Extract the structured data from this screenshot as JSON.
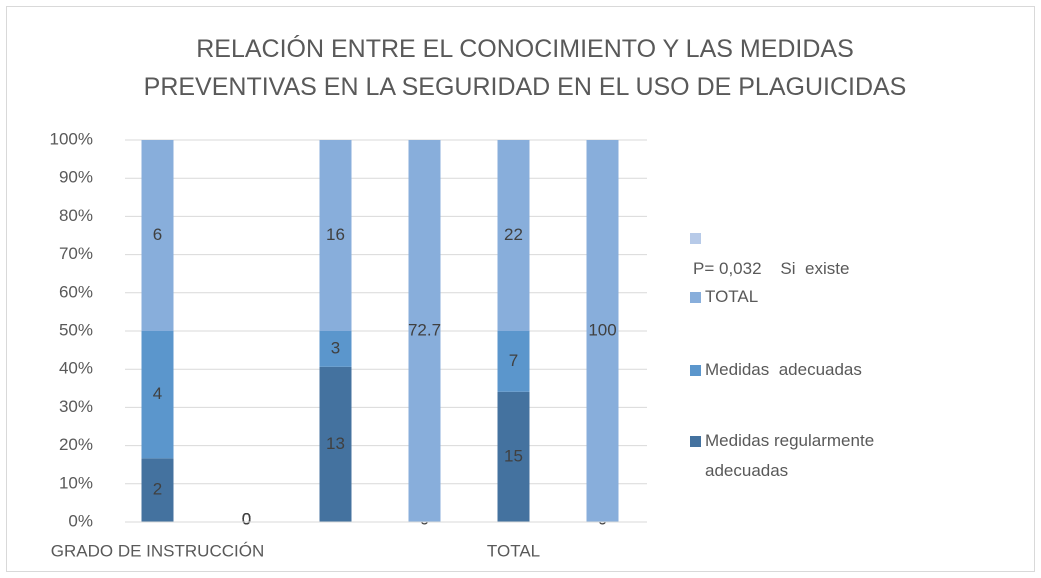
{
  "chart_data": {
    "type": "stacked_bar_100",
    "title": "RELACIÓN ENTRE EL CONOCIMIENTO Y LAS MEDIDAS PREVENTIVAS EN LA SEGURIDAD EN EL USO DE PLAGUICIDAS",
    "categories": [
      "GRADO DE INSTRUCCIÓN",
      null,
      null,
      null,
      "TOTAL",
      null
    ],
    "series": [
      {
        "name": "Medidas regularmente adecuadas",
        "color": "#44729f",
        "values": [
          2,
          0,
          13,
          0,
          15,
          0
        ]
      },
      {
        "name": "Medidas  adecuadas",
        "color": "#5b96cc",
        "values": [
          4,
          0,
          3,
          null,
          7,
          null
        ]
      },
      {
        "name": "TOTAL",
        "color": "#88aedb",
        "values": [
          6,
          0,
          16,
          72.7,
          22,
          100
        ]
      },
      {
        "name": "P= 0,032    Si  existe",
        "color": "#b7cae8",
        "values": [
          null,
          null,
          null,
          null,
          null,
          null
        ]
      }
    ],
    "ylim": [
      0,
      100
    ],
    "yticks": [
      {
        "value": 0,
        "label": "0%"
      },
      {
        "value": 10,
        "label": "10%"
      },
      {
        "value": 20,
        "label": "20%"
      },
      {
        "value": 30,
        "label": "30%"
      },
      {
        "value": 40,
        "label": "40%"
      },
      {
        "value": 50,
        "label": "50%"
      },
      {
        "value": 60,
        "label": "60%"
      },
      {
        "value": 70,
        "label": "70%"
      },
      {
        "value": 80,
        "label": "80%"
      },
      {
        "value": 90,
        "label": "90%"
      },
      {
        "value": 100,
        "label": "100%"
      }
    ],
    "grid": true,
    "legend": "right"
  }
}
